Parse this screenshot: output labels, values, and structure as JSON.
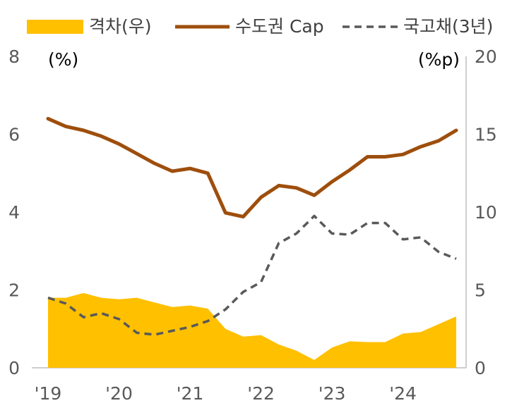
{
  "chart_data": {
    "type": "line",
    "x_labels": [
      "'19",
      "'20",
      "'21",
      "'22",
      "'23",
      "'24"
    ],
    "x_range": [
      0,
      23
    ],
    "x_label_positions": [
      0,
      4,
      8,
      12,
      16,
      20
    ],
    "left_axis": {
      "unit": "(%)",
      "ylim": [
        0,
        8
      ],
      "ticks": [
        "0",
        "2",
        "4",
        "6",
        "8"
      ]
    },
    "right_axis": {
      "unit": "(%p)",
      "ylim": [
        0,
        20
      ],
      "ticks": [
        "0",
        "5",
        "10",
        "15",
        "20"
      ]
    },
    "legend_position": "top",
    "series": [
      {
        "name": "격차(우)",
        "type": "area",
        "axis": "right",
        "color": "#FFC000",
        "values": [
          4.5,
          4.5,
          4.8,
          4.5,
          4.4,
          4.5,
          4.2,
          3.9,
          4.0,
          3.8,
          2.5,
          2.0,
          2.1,
          1.5,
          1.1,
          0.5,
          1.3,
          1.7,
          1.65,
          1.65,
          2.2,
          2.3,
          2.8,
          3.3
        ]
      },
      {
        "name": "수도권 Cap",
        "type": "line",
        "axis": "left",
        "color": "#9E4E0C",
        "dashed": false,
        "values": [
          6.4,
          6.2,
          6.1,
          5.95,
          5.75,
          5.5,
          5.25,
          5.05,
          5.12,
          5.0,
          3.98,
          3.88,
          4.38,
          4.68,
          4.62,
          4.43,
          4.78,
          5.08,
          5.42,
          5.42,
          5.48,
          5.68,
          5.83,
          6.1
        ]
      },
      {
        "name": "국고채(3년)",
        "type": "line",
        "axis": "left",
        "color": "#595959",
        "dashed": true,
        "values": [
          1.8,
          1.65,
          1.3,
          1.4,
          1.25,
          0.9,
          0.85,
          0.95,
          1.05,
          1.2,
          1.5,
          1.95,
          2.2,
          3.2,
          3.45,
          3.9,
          3.45,
          3.42,
          3.72,
          3.72,
          3.3,
          3.35,
          2.98,
          2.8
        ]
      }
    ]
  }
}
